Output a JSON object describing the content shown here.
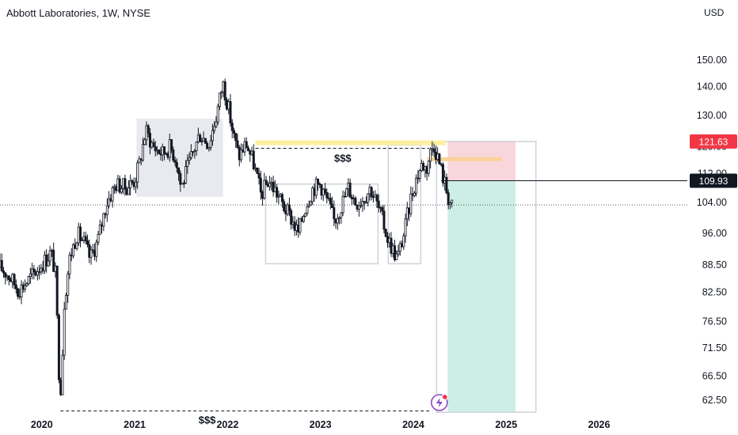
{
  "header": {
    "title": "Abbott Laboratories, 1W, NYSE",
    "currency": "USD"
  },
  "chart_data": {
    "type": "candlestick",
    "title": "Abbott Laboratories, 1W, NYSE",
    "y_axis": {
      "scale": "log",
      "ticks": [
        150.0,
        140.0,
        130.0,
        120.0,
        112.0,
        104.0,
        96.0,
        88.5,
        82.5,
        76.5,
        71.5,
        66.5,
        62.5
      ],
      "tick_labels": [
        "150.00",
        "140.00",
        "130.00",
        "120.00",
        "112.00",
        "104.00",
        "96.00",
        "88.50",
        "82.50",
        "76.50",
        "71.50",
        "66.50",
        "62.50"
      ],
      "range": [
        60.5,
        162
      ]
    },
    "x_axis": {
      "ticks": [
        2020,
        2021,
        2022,
        2023,
        2024,
        2025,
        2026
      ],
      "tick_labels": [
        "2020",
        "2021",
        "2022",
        "2023",
        "2024",
        "2025",
        "2026"
      ],
      "range": [
        2019.55,
        2026.95
      ]
    },
    "price_path": [
      [
        2019.55,
        88.0
      ],
      [
        2019.65,
        86.0
      ],
      [
        2019.75,
        83.0
      ],
      [
        2019.85,
        85.0
      ],
      [
        2019.95,
        87.5
      ],
      [
        2020.05,
        90.0
      ],
      [
        2020.1,
        91.5
      ],
      [
        2020.15,
        86.0
      ],
      [
        2020.18,
        68.0
      ],
      [
        2020.21,
        64.0
      ],
      [
        2020.24,
        80.0
      ],
      [
        2020.3,
        90.0
      ],
      [
        2020.38,
        96.0
      ],
      [
        2020.45,
        94.0
      ],
      [
        2020.52,
        90.0
      ],
      [
        2020.6,
        94.0
      ],
      [
        2020.7,
        104.0
      ],
      [
        2020.8,
        109.0
      ],
      [
        2020.9,
        108.0
      ],
      [
        2021.0,
        110.0
      ],
      [
        2021.05,
        115.0
      ],
      [
        2021.12,
        125.0
      ],
      [
        2021.2,
        120.0
      ],
      [
        2021.3,
        118.0
      ],
      [
        2021.38,
        120.0
      ],
      [
        2021.45,
        116.0
      ],
      [
        2021.5,
        108.0
      ],
      [
        2021.6,
        116.0
      ],
      [
        2021.7,
        124.0
      ],
      [
        2021.8,
        121.0
      ],
      [
        2021.88,
        130.0
      ],
      [
        2021.95,
        141.5
      ],
      [
        2022.0,
        134.0
      ],
      [
        2022.06,
        124.0
      ],
      [
        2022.12,
        117.0
      ],
      [
        2022.2,
        121.0
      ],
      [
        2022.28,
        115.0
      ],
      [
        2022.36,
        106.0
      ],
      [
        2022.44,
        110.0
      ],
      [
        2022.52,
        107.0
      ],
      [
        2022.6,
        103.0
      ],
      [
        2022.68,
        100.0
      ],
      [
        2022.76,
        96.0
      ],
      [
        2022.84,
        103.0
      ],
      [
        2022.92,
        108.0
      ],
      [
        2023.0,
        109.0
      ],
      [
        2023.08,
        104.0
      ],
      [
        2023.15,
        99.0
      ],
      [
        2023.22,
        103.0
      ],
      [
        2023.3,
        108.0
      ],
      [
        2023.38,
        104.0
      ],
      [
        2023.46,
        105.0
      ],
      [
        2023.54,
        108.0
      ],
      [
        2023.6,
        104.0
      ],
      [
        2023.66,
        100.0
      ],
      [
        2023.72,
        95.0
      ],
      [
        2023.78,
        92.0
      ],
      [
        2023.83,
        90.0
      ],
      [
        2023.9,
        96.0
      ],
      [
        2023.98,
        106.0
      ],
      [
        2024.05,
        112.0
      ],
      [
        2024.1,
        115.0
      ],
      [
        2024.14,
        113.0
      ],
      [
        2024.18,
        118.0
      ],
      [
        2024.22,
        121.0
      ],
      [
        2024.26,
        117.0
      ],
      [
        2024.3,
        113.0
      ],
      [
        2024.34,
        109.0
      ],
      [
        2024.38,
        105.0
      ],
      [
        2024.42,
        102.5
      ]
    ],
    "annotations": {
      "labels": [
        "$$$",
        "$$$"
      ],
      "current_price": 103.3,
      "stop_loss_price": 121.63,
      "entry_price": 109.93,
      "liquidity_level_top": 119.5,
      "liquidity_level_low": 60.8,
      "resistance_band_price": 121.2,
      "short_target_price": 60.6,
      "rectangles": [
        {
          "x": [
            2021.02,
            2021.95
          ],
          "y": [
            105.5,
            129.0
          ],
          "fill": "#e8eaef"
        },
        {
          "x": [
            2022.41,
            2023.62
          ],
          "y": [
            88.8,
            109.0
          ],
          "fill": "none"
        },
        {
          "x": [
            2023.73,
            2024.08
          ],
          "y": [
            88.8,
            120.5
          ],
          "fill": "none"
        },
        {
          "x": [
            2024.25,
            2025.32
          ],
          "y": [
            60.6,
            121.63
          ],
          "fill": "none"
        }
      ]
    },
    "colors": {
      "candle": "#131722",
      "stop_zone": "#f7c8cf",
      "target_zone": "#cdeee4",
      "yellow_band": "#fdef9f",
      "orange_band": "#f9d29a",
      "badge_red": "#f23645",
      "badge_black": "#131722"
    },
    "badges": [
      {
        "text": "121.63",
        "price": 121.63,
        "color": "#f23645"
      },
      {
        "text": "109.93",
        "price": 109.93,
        "color": "#131722"
      }
    ],
    "grid": false
  }
}
